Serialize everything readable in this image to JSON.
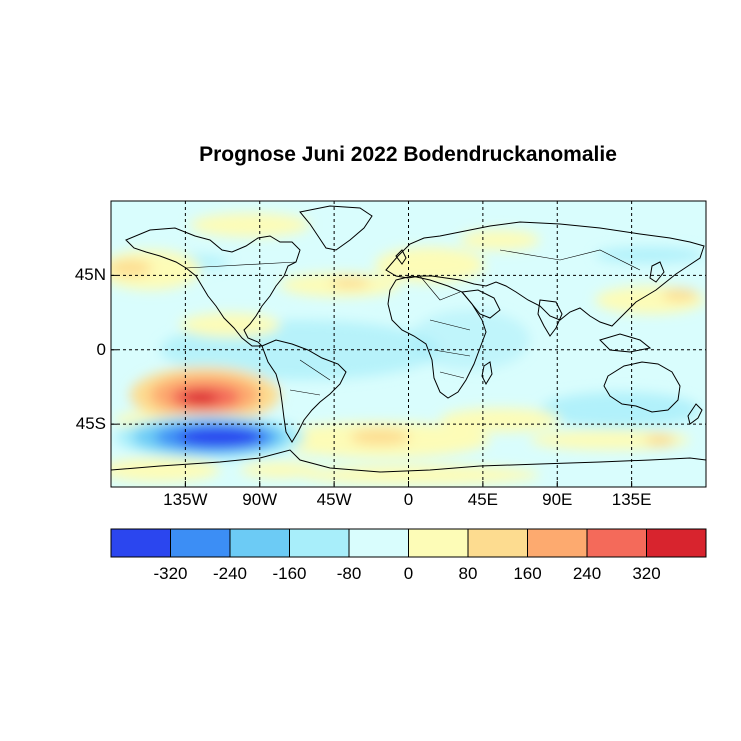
{
  "title": "Prognose Juni 2022 Bodendruckanomalie",
  "map": {
    "projection": "equirectangular",
    "lon_range": [
      -180,
      180
    ],
    "lat_range": [
      -83,
      90
    ],
    "lon_ticks": [
      "135W",
      "90W",
      "45W",
      "0",
      "45E",
      "90E",
      "135E"
    ],
    "lon_tick_values": [
      -135,
      -90,
      -45,
      0,
      45,
      90,
      135
    ],
    "lat_ticks": [
      "45N",
      "0",
      "45S"
    ],
    "lat_tick_values": [
      45,
      0,
      -45
    ],
    "gridlines": "dashed"
  },
  "colorbar": {
    "colors": [
      "#2b46ef",
      "#3c8ef5",
      "#6ccbf5",
      "#a8eefa",
      "#d9fdfd",
      "#fdfcb7",
      "#fddc90",
      "#fdaa6f",
      "#f46a5a",
      "#d8242e"
    ],
    "labels": [
      "-320",
      "-240",
      "-160",
      "-80",
      "0",
      "80",
      "160",
      "240",
      "320"
    ]
  },
  "anomaly_regions": [
    {
      "name": "south-pacific-high",
      "lon": -128,
      "lat": -33,
      "value": 300
    },
    {
      "name": "southern-ocean-low",
      "lon": -118,
      "lat": -56,
      "value": -340
    },
    {
      "name": "north-pacific-positive",
      "lon": -175,
      "lat": 47,
      "value": 90
    },
    {
      "name": "europe-positive",
      "lon": 15,
      "lat": 50,
      "value": 90
    },
    {
      "name": "south-atlantic-positive",
      "lon": -5,
      "lat": -55,
      "value": 110
    }
  ]
}
